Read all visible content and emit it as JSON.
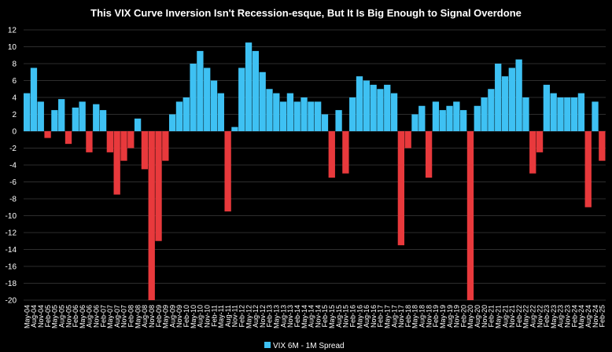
{
  "chart_data": {
    "type": "area",
    "title": "This VIX Curve Inversion Isn't Recession-esque, But It Is Big Enough to Signal Overdone",
    "xlabel": "",
    "ylabel": "",
    "ylim": [
      -20,
      12
    ],
    "yticks": [
      12,
      10,
      8,
      6,
      4,
      2,
      0,
      -2,
      -4,
      -6,
      -8,
      -10,
      -12,
      -14,
      -16,
      -18,
      -20
    ],
    "x_tick_labels": [
      "May-04",
      "Aug-04",
      "Nov-04",
      "Feb-05",
      "May-05",
      "Aug-05",
      "Nov-05",
      "Feb-06",
      "May-06",
      "Aug-06",
      "Nov-06",
      "Feb-07",
      "May-07",
      "Aug-07",
      "Nov-07",
      "Feb-08",
      "May-08",
      "Aug-08",
      "Nov-08",
      "Feb-09",
      "May-09",
      "Aug-09",
      "Nov-09",
      "Feb-10",
      "May-10",
      "Aug-10",
      "Nov-10",
      "Feb-11",
      "May-11",
      "Aug-11",
      "Nov-11",
      "Feb-12",
      "May-12",
      "Aug-12",
      "Nov-12",
      "Feb-13",
      "May-13",
      "Aug-13",
      "Nov-13",
      "Feb-14",
      "May-14",
      "Aug-14",
      "Nov-14",
      "Feb-15",
      "May-15",
      "Aug-15",
      "Nov-15",
      "Feb-16",
      "May-16",
      "Aug-16",
      "Nov-16",
      "Feb-17",
      "May-17",
      "Aug-17",
      "Nov-17",
      "Feb-18",
      "May-18",
      "Aug-18",
      "Nov-18",
      "Feb-19",
      "May-19",
      "Aug-19",
      "Nov-19",
      "Feb-20",
      "May-20",
      "Aug-20",
      "Nov-20",
      "Feb-21",
      "May-21",
      "Aug-21",
      "Nov-21",
      "Feb-22",
      "May-22",
      "Aug-22",
      "Nov-22",
      "Feb-23",
      "May-23",
      "Aug-23",
      "Nov-23",
      "Feb-24",
      "May-24",
      "Aug-24",
      "Nov-24",
      "Feb-25"
    ],
    "series": [
      {
        "name": "VIX 6M - 1M Spread",
        "positive_color": "#3ec1f3",
        "negative_color": "#e8393c",
        "x": [
          "May-04",
          "Aug-04",
          "Nov-04",
          "Feb-05",
          "May-05",
          "Aug-05",
          "Nov-05",
          "Feb-06",
          "May-06",
          "Aug-06",
          "Nov-06",
          "Feb-07",
          "May-07",
          "Aug-07",
          "Nov-07",
          "Feb-08",
          "May-08",
          "Aug-08",
          "Nov-08",
          "Feb-09",
          "May-09",
          "Aug-09",
          "Nov-09",
          "Feb-10",
          "May-10",
          "Aug-10",
          "Nov-10",
          "Feb-11",
          "May-11",
          "Aug-11",
          "Nov-11",
          "Feb-12",
          "May-12",
          "Aug-12",
          "Nov-12",
          "Feb-13",
          "May-13",
          "Aug-13",
          "Nov-13",
          "Feb-14",
          "May-14",
          "Aug-14",
          "Nov-14",
          "Feb-15",
          "May-15",
          "Aug-15",
          "Nov-15",
          "Feb-16",
          "May-16",
          "Aug-16",
          "Nov-16",
          "Feb-17",
          "May-17",
          "Aug-17",
          "Nov-17",
          "Feb-18",
          "May-18",
          "Aug-18",
          "Nov-18",
          "Feb-19",
          "May-19",
          "Aug-19",
          "Nov-19",
          "Feb-20",
          "May-20",
          "Aug-20",
          "Nov-20",
          "Feb-21",
          "May-21",
          "Aug-21",
          "Nov-21",
          "Feb-22",
          "May-22",
          "Aug-22",
          "Nov-22",
          "Feb-23",
          "May-23",
          "Aug-23",
          "Nov-23",
          "Feb-24",
          "May-24",
          "Aug-24",
          "Nov-24",
          "Feb-25"
        ],
        "values": [
          4.5,
          7.5,
          3.5,
          -0.8,
          2.5,
          3.8,
          -1.5,
          2.8,
          3.5,
          -2.5,
          3.2,
          2.5,
          -2.5,
          -7.5,
          -3.5,
          -2.0,
          1.5,
          -4.5,
          -20.0,
          -13.0,
          -3.5,
          2.0,
          3.5,
          4.0,
          8.0,
          9.5,
          7.5,
          6.0,
          4.5,
          -9.5,
          0.5,
          7.5,
          10.5,
          9.5,
          7.0,
          5.0,
          4.5,
          3.5,
          4.5,
          3.5,
          4.0,
          3.5,
          3.5,
          2.0,
          -5.5,
          2.5,
          -5.0,
          4.0,
          6.5,
          6.0,
          5.5,
          5.0,
          5.5,
          4.5,
          -13.5,
          -2.0,
          2.0,
          3.0,
          -5.5,
          3.5,
          2.5,
          3.0,
          3.5,
          2.5,
          -20.0,
          3.0,
          4.0,
          5.0,
          8.0,
          6.5,
          7.5,
          8.5,
          4.0,
          -5.0,
          -2.5,
          5.5,
          4.5,
          4.0,
          4.0,
          4.0,
          4.5,
          -9.0,
          3.5,
          -3.5
        ]
      }
    ],
    "grid": true,
    "legend": "bottom-center"
  }
}
